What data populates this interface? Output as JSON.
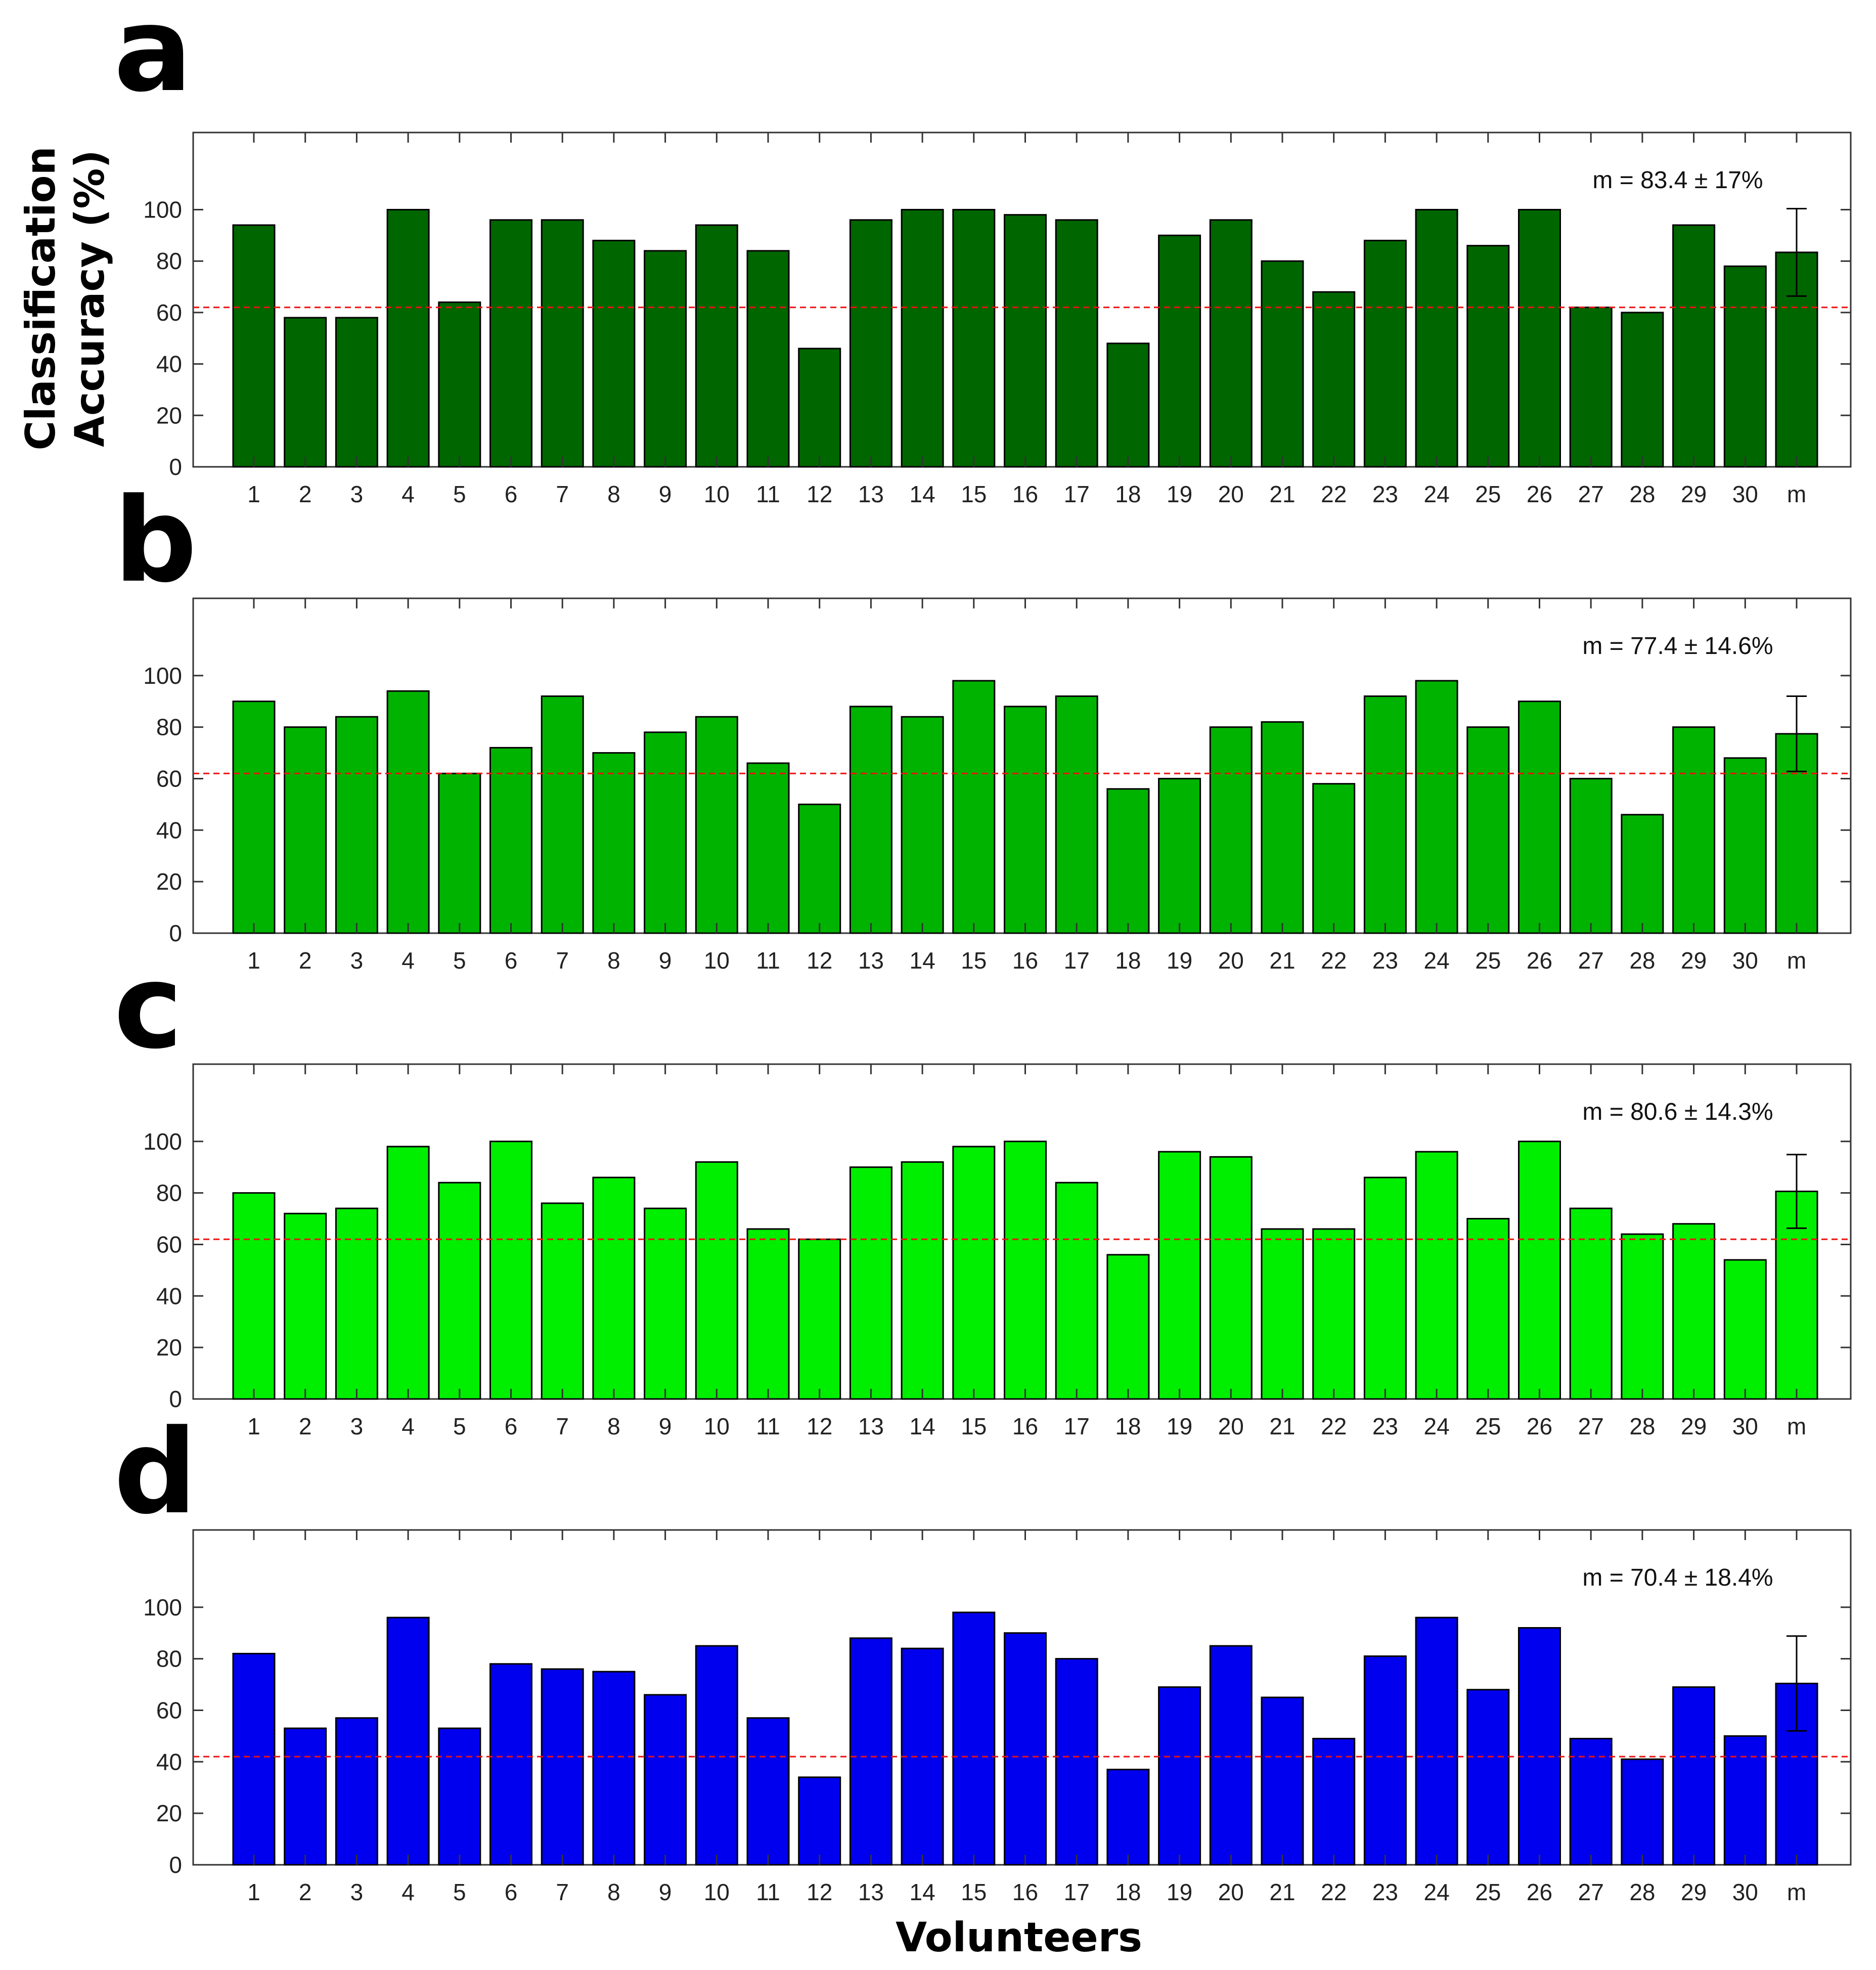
{
  "figure": {
    "ylabel_line1": "Classification",
    "ylabel_line2": "Accuracy (%)",
    "xlabel": "Volunteers"
  },
  "chart_data": [
    {
      "type": "bar",
      "panel": "a",
      "categories": [
        "1",
        "2",
        "3",
        "4",
        "5",
        "6",
        "7",
        "8",
        "9",
        "10",
        "11",
        "12",
        "13",
        "14",
        "15",
        "16",
        "17",
        "18",
        "19",
        "20",
        "21",
        "22",
        "23",
        "24",
        "25",
        "26",
        "27",
        "28",
        "29",
        "30",
        "m"
      ],
      "values": [
        94,
        58,
        58,
        100,
        64,
        96,
        96,
        88,
        84,
        94,
        84,
        46,
        96,
        100,
        100,
        98,
        96,
        48,
        90,
        96,
        80,
        68,
        88,
        100,
        86,
        100,
        62,
        60,
        94,
        78,
        83.4
      ],
      "error": {
        "category": "m",
        "low": 66.4,
        "high": 100.4
      },
      "annotation": "m = 83.4 ± 17%",
      "chance_level": 62,
      "color": "#006600",
      "ylim": [
        0,
        130
      ],
      "yticks": [
        0,
        20,
        40,
        60,
        80,
        100
      ],
      "grid": false
    },
    {
      "type": "bar",
      "panel": "b",
      "categories": [
        "1",
        "2",
        "3",
        "4",
        "5",
        "6",
        "7",
        "8",
        "9",
        "10",
        "11",
        "12",
        "13",
        "14",
        "15",
        "16",
        "17",
        "18",
        "19",
        "20",
        "21",
        "22",
        "23",
        "24",
        "25",
        "26",
        "27",
        "28",
        "29",
        "30",
        "m"
      ],
      "values": [
        90,
        80,
        84,
        94,
        62,
        72,
        92,
        70,
        78,
        84,
        66,
        50,
        88,
        84,
        98,
        88,
        92,
        56,
        60,
        80,
        82,
        58,
        92,
        98,
        80,
        90,
        60,
        46,
        80,
        68,
        77.4
      ],
      "error": {
        "category": "m",
        "low": 62.8,
        "high": 92
      },
      "annotation": "m = 77.4 ± 14.6%",
      "chance_level": 62,
      "color": "#00b300",
      "ylim": [
        0,
        130
      ],
      "yticks": [
        0,
        20,
        40,
        60,
        80,
        100
      ],
      "grid": false
    },
    {
      "type": "bar",
      "panel": "c",
      "categories": [
        "1",
        "2",
        "3",
        "4",
        "5",
        "6",
        "7",
        "8",
        "9",
        "10",
        "11",
        "12",
        "13",
        "14",
        "15",
        "16",
        "17",
        "18",
        "19",
        "20",
        "21",
        "22",
        "23",
        "24",
        "25",
        "26",
        "27",
        "28",
        "29",
        "30",
        "m"
      ],
      "values": [
        80,
        72,
        74,
        98,
        84,
        100,
        76,
        86,
        74,
        92,
        66,
        62,
        90,
        92,
        98,
        100,
        84,
        56,
        96,
        94,
        66,
        66,
        86,
        96,
        70,
        100,
        74,
        64,
        68,
        54,
        80.6
      ],
      "error": {
        "category": "m",
        "low": 66.3,
        "high": 94.9
      },
      "annotation": "m = 80.6 ± 14.3%",
      "chance_level": 62,
      "color": "#00ee00",
      "ylim": [
        0,
        130
      ],
      "yticks": [
        0,
        20,
        40,
        60,
        80,
        100
      ],
      "grid": false
    },
    {
      "type": "bar",
      "panel": "d",
      "categories": [
        "1",
        "2",
        "3",
        "4",
        "5",
        "6",
        "7",
        "8",
        "9",
        "10",
        "11",
        "12",
        "13",
        "14",
        "15",
        "16",
        "17",
        "18",
        "19",
        "20",
        "21",
        "22",
        "23",
        "24",
        "25",
        "26",
        "27",
        "28",
        "29",
        "30",
        "m"
      ],
      "values": [
        82,
        53,
        57,
        96,
        53,
        78,
        76,
        75,
        66,
        85,
        57,
        34,
        88,
        84,
        98,
        90,
        80,
        37,
        69,
        85,
        65,
        49,
        81,
        96,
        68,
        92,
        49,
        41,
        69,
        50,
        70.4
      ],
      "error": {
        "category": "m",
        "low": 52,
        "high": 88.8
      },
      "annotation": "m = 70.4 ± 18.4%",
      "chance_level": 42,
      "color": "#0000ee",
      "ylim": [
        0,
        130
      ],
      "yticks": [
        0,
        20,
        40,
        60,
        80,
        100
      ],
      "grid": false
    }
  ]
}
